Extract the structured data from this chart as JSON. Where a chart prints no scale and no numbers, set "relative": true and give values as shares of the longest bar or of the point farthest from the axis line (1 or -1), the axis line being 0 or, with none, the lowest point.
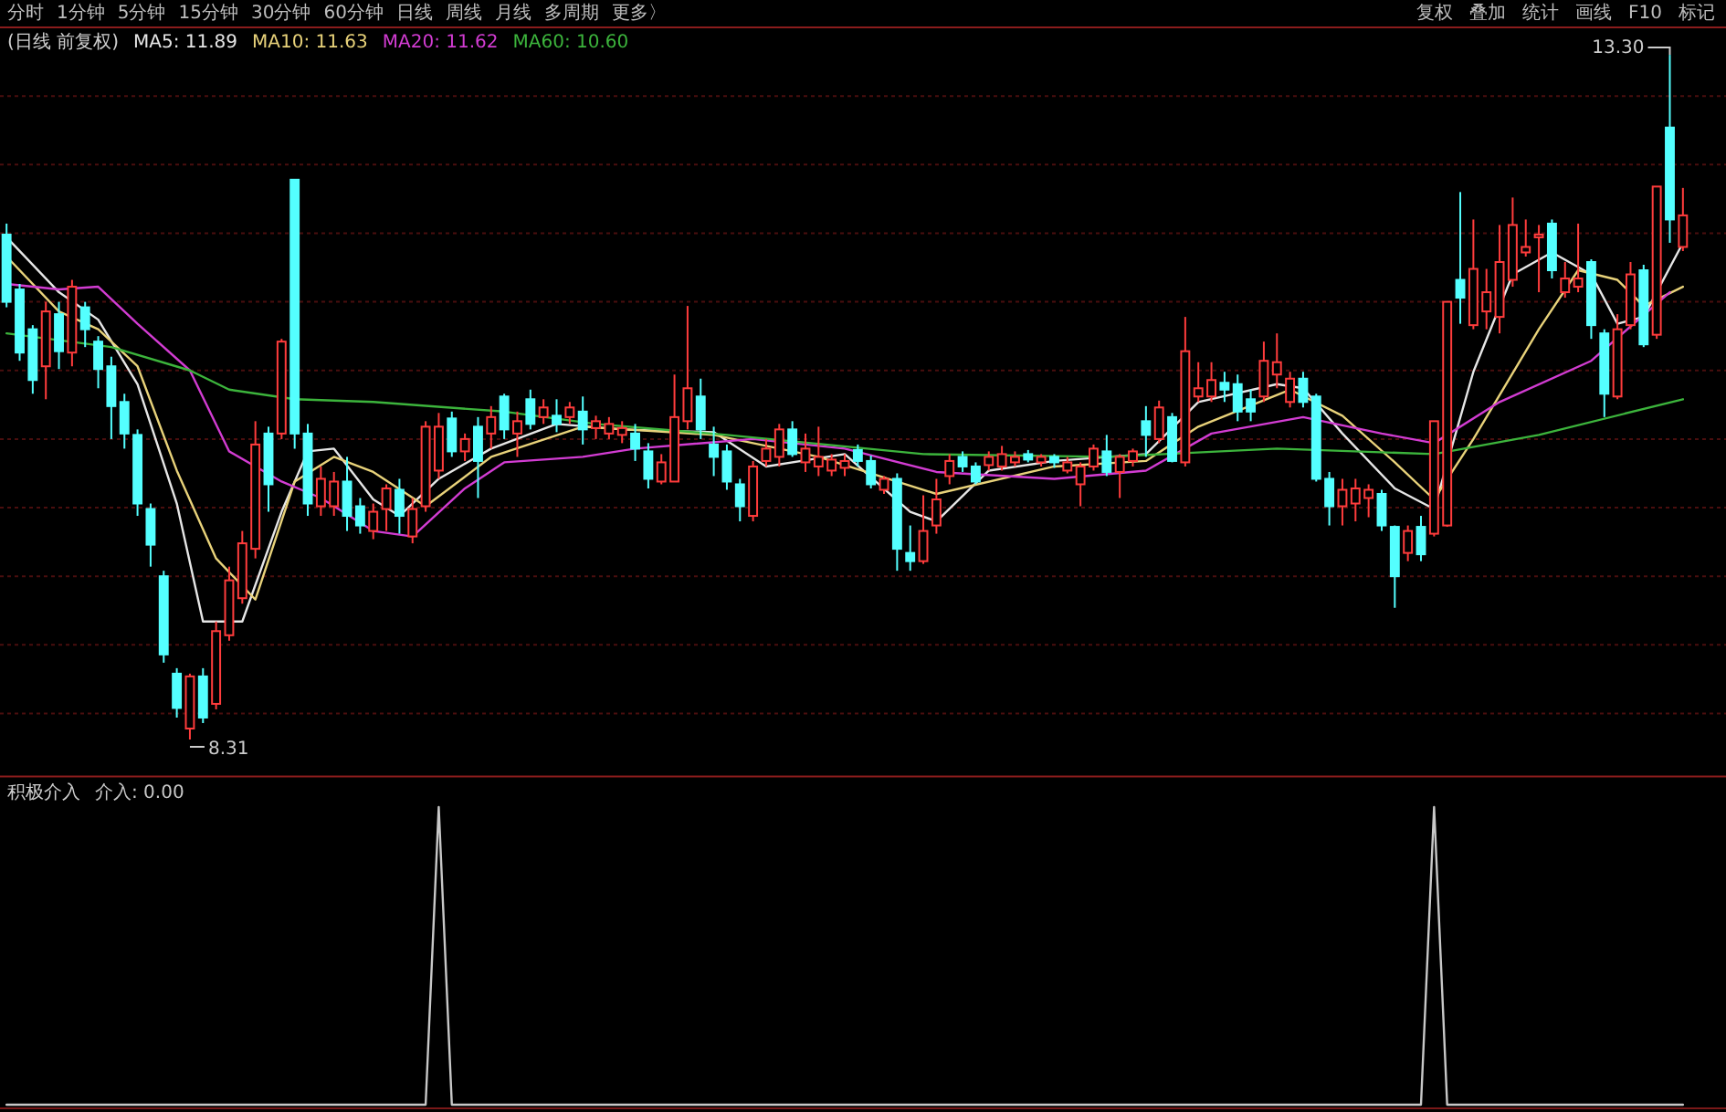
{
  "chart_data": [
    {
      "type": "candlestick",
      "title": "(日线 前复权)",
      "categories": [
        null,
        null,
        null,
        null,
        null,
        null,
        null,
        null,
        null,
        null,
        null,
        null,
        null,
        null,
        null,
        null,
        null,
        null,
        null,
        null,
        null,
        null,
        null,
        null,
        null,
        null,
        null,
        null,
        null,
        null,
        null,
        null,
        null,
        null,
        null,
        null,
        null,
        null,
        null,
        null,
        null,
        null,
        null,
        null,
        null,
        null,
        null,
        null,
        null,
        null,
        null,
        null,
        null,
        null,
        null,
        null,
        null,
        null,
        null,
        null,
        null,
        null,
        null,
        null,
        null,
        null,
        null,
        null,
        null,
        null,
        null,
        null,
        null,
        null,
        null,
        null,
        null,
        null,
        null,
        null,
        null,
        null,
        null,
        null,
        null,
        null,
        null,
        null,
        null,
        null,
        null,
        null,
        null,
        null,
        null,
        null,
        null,
        null,
        null,
        null,
        null,
        null,
        null,
        null,
        null,
        null,
        null,
        null,
        null,
        null,
        null,
        null,
        null,
        null,
        null,
        null,
        null,
        null,
        null,
        null,
        null,
        null,
        null,
        null,
        null,
        null,
        null,
        null,
        null
      ],
      "ohlc": [
        [
          11.99,
          12.07,
          11.46,
          11.5
        ],
        [
          11.59,
          11.63,
          11.07,
          11.13
        ],
        [
          11.3,
          11.33,
          10.83,
          10.93
        ],
        [
          11.03,
          11.5,
          10.79,
          11.43
        ],
        [
          11.41,
          11.5,
          11.01,
          11.14
        ],
        [
          11.13,
          11.66,
          11.03,
          11.61
        ],
        [
          11.46,
          11.5,
          11.17,
          11.3
        ],
        [
          11.21,
          11.25,
          10.87,
          11.01
        ],
        [
          11.03,
          11.1,
          10.5,
          10.74
        ],
        [
          10.77,
          10.83,
          10.43,
          10.54
        ],
        [
          10.53,
          10.57,
          9.94,
          10.03
        ],
        [
          9.99,
          10.03,
          9.57,
          9.73
        ],
        [
          9.5,
          9.54,
          8.87,
          8.93
        ],
        [
          8.79,
          8.83,
          8.47,
          8.54
        ],
        [
          8.39,
          8.79,
          8.31,
          8.77
        ],
        [
          8.77,
          8.83,
          8.43,
          8.47
        ],
        [
          8.57,
          9.17,
          8.53,
          9.1
        ],
        [
          9.07,
          9.57,
          9.03,
          9.47
        ],
        [
          9.34,
          9.83,
          9.3,
          9.74
        ],
        [
          9.7,
          10.63,
          9.63,
          10.46
        ],
        [
          10.54,
          10.59,
          9.97,
          10.17
        ],
        [
          10.54,
          11.23,
          10.5,
          11.21
        ],
        [
          12.39,
          12.39,
          10.43,
          10.54
        ],
        [
          10.54,
          10.61,
          9.94,
          10.03
        ],
        [
          10.01,
          10.3,
          9.94,
          10.21
        ],
        [
          10.01,
          10.26,
          9.94,
          10.19
        ],
        [
          10.19,
          10.37,
          9.83,
          9.94
        ],
        [
          10.01,
          10.07,
          9.81,
          9.87
        ],
        [
          9.83,
          10.03,
          9.77,
          9.97
        ],
        [
          9.99,
          10.17,
          9.83,
          10.14
        ],
        [
          10.13,
          10.21,
          9.81,
          9.94
        ],
        [
          9.79,
          10.07,
          9.74,
          9.99
        ],
        [
          10.01,
          10.63,
          9.97,
          10.59
        ],
        [
          10.27,
          10.69,
          10.21,
          10.59
        ],
        [
          10.65,
          10.7,
          10.37,
          10.41
        ],
        [
          10.41,
          10.54,
          10.34,
          10.5
        ],
        [
          10.59,
          10.66,
          10.07,
          10.34
        ],
        [
          10.54,
          10.74,
          10.43,
          10.66
        ],
        [
          10.81,
          10.83,
          10.5,
          10.57
        ],
        [
          10.54,
          10.7,
          10.37,
          10.63
        ],
        [
          10.79,
          10.86,
          10.57,
          10.61
        ],
        [
          10.66,
          10.79,
          10.61,
          10.73
        ],
        [
          10.67,
          10.79,
          10.55,
          10.61
        ],
        [
          10.66,
          10.77,
          10.61,
          10.73
        ],
        [
          10.7,
          10.81,
          10.46,
          10.57
        ],
        [
          10.58,
          10.67,
          10.5,
          10.63
        ],
        [
          10.54,
          10.66,
          10.5,
          10.61
        ],
        [
          10.53,
          10.63,
          10.47,
          10.58
        ],
        [
          10.54,
          10.61,
          10.34,
          10.43
        ],
        [
          10.41,
          10.47,
          10.14,
          10.21
        ],
        [
          10.19,
          10.39,
          10.17,
          10.33
        ],
        [
          10.19,
          10.97,
          10.19,
          10.66
        ],
        [
          10.63,
          11.47,
          10.57,
          10.87
        ],
        [
          10.81,
          10.94,
          10.5,
          10.57
        ],
        [
          10.46,
          10.59,
          10.23,
          10.37
        ],
        [
          10.41,
          10.46,
          10.13,
          10.19
        ],
        [
          10.17,
          10.21,
          9.9,
          10.01
        ],
        [
          9.94,
          10.34,
          9.9,
          10.3
        ],
        [
          10.34,
          10.5,
          10.3,
          10.43
        ],
        [
          10.37,
          10.61,
          10.3,
          10.57
        ],
        [
          10.57,
          10.63,
          10.37,
          10.39
        ],
        [
          10.33,
          10.54,
          10.26,
          10.43
        ],
        [
          10.3,
          10.59,
          10.23,
          10.37
        ],
        [
          10.27,
          10.39,
          10.23,
          10.35
        ],
        [
          10.29,
          10.39,
          10.23,
          10.34
        ],
        [
          10.42,
          10.46,
          10.3,
          10.34
        ],
        [
          10.34,
          10.38,
          10.14,
          10.17
        ],
        [
          10.13,
          10.23,
          10.1,
          10.21
        ],
        [
          10.21,
          10.25,
          9.54,
          9.7
        ],
        [
          9.67,
          9.87,
          9.54,
          9.61
        ],
        [
          9.61,
          10.09,
          9.59,
          9.83
        ],
        [
          9.87,
          10.21,
          9.81,
          10.06
        ],
        [
          10.23,
          10.39,
          10.17,
          10.34
        ],
        [
          10.37,
          10.41,
          10.26,
          10.3
        ],
        [
          10.3,
          10.33,
          10.17,
          10.19
        ],
        [
          10.31,
          10.41,
          10.27,
          10.37
        ],
        [
          10.3,
          10.45,
          10.27,
          10.39
        ],
        [
          10.33,
          10.41,
          10.3,
          10.37
        ],
        [
          10.39,
          10.42,
          10.33,
          10.35
        ],
        [
          10.33,
          10.39,
          10.3,
          10.37
        ],
        [
          10.37,
          10.39,
          10.29,
          10.33
        ],
        [
          10.27,
          10.37,
          10.25,
          10.33
        ],
        [
          10.17,
          10.33,
          10.01,
          10.3
        ],
        [
          10.3,
          10.46,
          10.27,
          10.43
        ],
        [
          10.41,
          10.53,
          10.23,
          10.26
        ],
        [
          10.26,
          10.39,
          10.07,
          10.37
        ],
        [
          10.34,
          10.43,
          10.3,
          10.41
        ],
        [
          10.63,
          10.74,
          10.37,
          10.53
        ],
        [
          10.5,
          10.78,
          10.47,
          10.73
        ],
        [
          10.66,
          10.69,
          10.33,
          10.34
        ],
        [
          10.33,
          11.39,
          10.3,
          11.14
        ],
        [
          10.81,
          11.06,
          10.77,
          10.87
        ],
        [
          10.81,
          11.06,
          10.77,
          10.93
        ],
        [
          10.91,
          10.99,
          10.77,
          10.86
        ],
        [
          10.9,
          10.97,
          10.63,
          10.7
        ],
        [
          10.79,
          10.86,
          10.63,
          10.7
        ],
        [
          10.81,
          11.21,
          10.77,
          11.07
        ],
        [
          10.97,
          11.27,
          10.87,
          11.06
        ],
        [
          10.77,
          10.99,
          10.73,
          10.94
        ],
        [
          10.94,
          10.99,
          10.73,
          10.77
        ],
        [
          10.81,
          10.83,
          10.19,
          10.21
        ],
        [
          10.21,
          10.26,
          9.87,
          10.01
        ],
        [
          10.01,
          10.21,
          9.87,
          10.13
        ],
        [
          10.03,
          10.21,
          9.9,
          10.14
        ],
        [
          10.07,
          10.17,
          9.93,
          10.13
        ],
        [
          10.1,
          10.13,
          9.83,
          9.87
        ],
        [
          9.86,
          9.87,
          9.27,
          9.5
        ],
        [
          9.67,
          9.87,
          9.61,
          9.83
        ],
        [
          9.86,
          9.94,
          9.61,
          9.66
        ],
        [
          9.81,
          10.63,
          9.79,
          10.63
        ],
        [
          9.87,
          11.5,
          9.86,
          11.5
        ],
        [
          11.66,
          12.3,
          11.34,
          11.53
        ],
        [
          11.33,
          12.1,
          11.3,
          11.74
        ],
        [
          11.43,
          11.74,
          11.3,
          11.57
        ],
        [
          11.39,
          12.06,
          11.27,
          11.79
        ],
        [
          11.66,
          12.26,
          11.61,
          12.06
        ],
        [
          11.86,
          12.1,
          11.83,
          11.9
        ],
        [
          11.97,
          12.06,
          11.57,
          11.99
        ],
        [
          12.07,
          12.1,
          11.67,
          11.73
        ],
        [
          11.57,
          11.79,
          11.53,
          11.67
        ],
        [
          11.61,
          12.07,
          11.57,
          11.67
        ],
        [
          11.79,
          11.81,
          11.23,
          11.33
        ],
        [
          11.27,
          11.3,
          10.66,
          10.83
        ],
        [
          10.81,
          11.41,
          10.79,
          11.3
        ],
        [
          11.33,
          11.79,
          11.3,
          11.7
        ],
        [
          11.73,
          11.77,
          11.17,
          11.19
        ],
        [
          11.26,
          12.34,
          11.23,
          12.34
        ],
        [
          12.77,
          13.3,
          11.93,
          12.1
        ],
        [
          11.9,
          12.33,
          11.87,
          12.13
        ]
      ],
      "series": [
        {
          "name": "MA5: 11.89",
          "type": "line",
          "color": "#e6e6e6",
          "values": [
            11.97,
            null,
            null,
            null,
            11.57,
            null,
            null,
            11.37,
            null,
            null,
            10.9,
            null,
            null,
            10.03,
            null,
            9.17,
            null,
            null,
            9.17,
            null,
            null,
            9.97,
            null,
            10.41,
            null,
            10.43,
            null,
            null,
            10.06,
            null,
            9.94,
            null,
            null,
            10.21,
            null,
            null,
            null,
            10.43,
            null,
            null,
            null,
            null,
            10.61,
            null,
            null,
            null,
            null,
            10.57,
            null,
            null,
            null,
            null,
            null,
            null,
            10.55,
            null,
            null,
            null,
            10.3,
            null,
            null,
            null,
            null,
            null,
            10.39,
            null,
            null,
            null,
            null,
            9.97,
            null,
            9.9,
            null,
            null,
            null,
            10.27,
            null,
            null,
            null,
            null,
            10.34,
            null,
            null,
            null,
            null,
            null,
            null,
            10.39,
            null,
            null,
            null,
            10.77,
            null,
            null,
            null,
            null,
            null,
            10.9,
            null,
            10.87,
            null,
            null,
            10.54,
            null,
            null,
            null,
            10.14,
            null,
            null,
            9.99,
            null,
            null,
            10.99,
            null,
            null,
            11.7,
            null,
            null,
            11.86,
            null,
            null,
            11.7,
            null,
            11.34,
            null,
            11.39,
            null,
            null,
            11.93
          ]
        },
        {
          "name": "MA10: 11.63",
          "type": "line",
          "color": "#e8d27a",
          "values": [
            11.83,
            null,
            null,
            null,
            11.43,
            null,
            null,
            11.3,
            null,
            null,
            11.03,
            null,
            null,
            10.27,
            null,
            null,
            9.63,
            null,
            null,
            9.33,
            null,
            null,
            10.19,
            null,
            null,
            10.37,
            null,
            null,
            10.26,
            null,
            null,
            null,
            10.01,
            null,
            null,
            null,
            null,
            10.37,
            null,
            null,
            null,
            null,
            null,
            null,
            10.59,
            null,
            null,
            null,
            null,
            null,
            null,
            null,
            null,
            null,
            10.53,
            null,
            null,
            null,
            null,
            null,
            null,
            null,
            10.37,
            null,
            null,
            null,
            null,
            null,
            null,
            null,
            null,
            10.1,
            null,
            null,
            null,
            null,
            null,
            null,
            null,
            null,
            10.3,
            null,
            null,
            null,
            null,
            null,
            null,
            10.34,
            null,
            null,
            null,
            10.59,
            null,
            null,
            null,
            null,
            null,
            null,
            10.86,
            null,
            null,
            null,
            10.67,
            null,
            null,
            null,
            10.33,
            null,
            null,
            10.06,
            null,
            null,
            10.5,
            null,
            null,
            null,
            null,
            11.3,
            null,
            null,
            11.73,
            null,
            null,
            11.66,
            null,
            11.47,
            null,
            null,
            11.61
          ]
        },
        {
          "name": "MA20: 11.62",
          "type": "line",
          "color": "#d23cd2",
          "values": [
            11.63,
            null,
            null,
            null,
            11.59,
            null,
            null,
            11.61,
            null,
            null,
            11.34,
            null,
            null,
            null,
            11.0,
            null,
            null,
            10.41,
            null,
            null,
            null,
            10.19,
            null,
            null,
            10.07,
            null,
            null,
            null,
            9.83,
            null,
            null,
            9.79,
            null,
            null,
            null,
            10.14,
            null,
            null,
            10.33,
            null,
            null,
            null,
            null,
            null,
            10.37,
            null,
            null,
            null,
            10.43,
            null,
            null,
            null,
            null,
            null,
            null,
            null,
            null,
            10.5,
            null,
            null,
            null,
            null,
            null,
            null,
            10.43,
            null,
            null,
            null,
            null,
            null,
            null,
            10.26,
            null,
            null,
            null,
            null,
            null,
            null,
            null,
            null,
            10.21,
            null,
            null,
            null,
            null,
            null,
            null,
            10.27,
            null,
            null,
            null,
            null,
            10.54,
            null,
            null,
            null,
            null,
            null,
            null,
            10.66,
            null,
            null,
            null,
            null,
            null,
            10.54,
            null,
            null,
            null,
            10.47,
            null,
            null,
            null,
            null,
            10.77,
            null,
            null,
            null,
            null,
            null,
            null,
            11.07,
            null,
            null,
            null,
            null,
            null,
            11.57,
            null
          ]
        },
        {
          "name": "MA60: 10.60",
          "type": "line",
          "color": "#3cb43c",
          "values": [
            11.27,
            null,
            null,
            null,
            null,
            null,
            null,
            null,
            11.17,
            null,
            null,
            null,
            null,
            null,
            11.0,
            null,
            null,
            10.86,
            null,
            null,
            null,
            null,
            10.79,
            null,
            null,
            null,
            null,
            null,
            10.77,
            null,
            null,
            null,
            null,
            null,
            null,
            null,
            null,
            null,
            10.7,
            null,
            null,
            null,
            null,
            null,
            null,
            10.61,
            null,
            null,
            null,
            null,
            null,
            null,
            null,
            null,
            null,
            10.53,
            null,
            null,
            null,
            null,
            null,
            null,
            null,
            null,
            null,
            null,
            null,
            null,
            null,
            null,
            10.39,
            null,
            null,
            null,
            null,
            null,
            null,
            null,
            null,
            null,
            null,
            null,
            null,
            null,
            10.37,
            null,
            null,
            null,
            null,
            null,
            null,
            null,
            null,
            null,
            null,
            null,
            null,
            10.43,
            null,
            null,
            null,
            null,
            null,
            null,
            null,
            null,
            null,
            null,
            null,
            10.39,
            null,
            null,
            null,
            null,
            null,
            null,
            null,
            10.53,
            null,
            null,
            null,
            null,
            null,
            null,
            null,
            null,
            null,
            null,
            10.79
          ]
        }
      ],
      "ylim": [
        8.04,
        13.5
      ],
      "yticks": [
        {
          "value": 8.5,
          "label": null
        },
        {
          "value": 9,
          "label": null
        },
        {
          "value": 9.5,
          "label": null
        },
        {
          "value": 10,
          "label": null
        },
        {
          "value": 10.5,
          "label": null
        },
        {
          "value": 11,
          "label": null
        },
        {
          "value": 11.5,
          "label": null
        },
        {
          "value": 12,
          "label": null
        },
        {
          "value": 12.5,
          "label": null
        },
        {
          "value": 13,
          "label": null
        }
      ],
      "grid": "y",
      "legend": "top left",
      "tick_labels": false,
      "annotations": [
        "13.30",
        "8.31",
        "分时",
        "1分钟",
        "5分钟",
        "15分钟",
        "30分钟",
        "60分钟",
        "日线",
        "周线",
        "月线",
        "多周期",
        "更多〉",
        "复权",
        "叠加",
        "统计",
        "画线",
        "F10",
        "标记"
      ]
    },
    {
      "type": "line",
      "title": "积极介入",
      "relative": true,
      "legend": "top left",
      "tick_labels": false,
      "categories": [
        null,
        null,
        null,
        null,
        null,
        null,
        null,
        null,
        null,
        null,
        null,
        null,
        null,
        null,
        null,
        null,
        null,
        null,
        null,
        null,
        null,
        null,
        null,
        null,
        null,
        null,
        null,
        null,
        null,
        null,
        null,
        null,
        null,
        null,
        null,
        null,
        null,
        null,
        null,
        null,
        null,
        null,
        null,
        null,
        null,
        null,
        null,
        null,
        null,
        null,
        null,
        null,
        null,
        null,
        null,
        null,
        null,
        null,
        null,
        null,
        null,
        null,
        null,
        null,
        null,
        null,
        null,
        null,
        null,
        null,
        null,
        null,
        null,
        null,
        null,
        null,
        null,
        null,
        null,
        null,
        null,
        null,
        null,
        null,
        null,
        null,
        null,
        null,
        null,
        null,
        null,
        null,
        null,
        null,
        null,
        null,
        null,
        null,
        null,
        null,
        null,
        null,
        null,
        null,
        null,
        null,
        null,
        null,
        null,
        null,
        null,
        null,
        null,
        null,
        null,
        null,
        null,
        null,
        null,
        null,
        null,
        null,
        null,
        null,
        null,
        null,
        null,
        null,
        null
      ],
      "series": [
        {
          "name": "介入: 0.00",
          "color": "#c8c8c8",
          "values": [
            0,
            0,
            0,
            0,
            0,
            0,
            0,
            0,
            0,
            0,
            0,
            0,
            0,
            0,
            0,
            0,
            0,
            0,
            0,
            0,
            0,
            0,
            0,
            0,
            0,
            0,
            0,
            0,
            0,
            0,
            0,
            0,
            0,
            1,
            0,
            0,
            0,
            0,
            0,
            0,
            0,
            0,
            0,
            0,
            0,
            0,
            0,
            0,
            0,
            0,
            0,
            0,
            0,
            0,
            0,
            0,
            0,
            0,
            0,
            0,
            0,
            0,
            0,
            0,
            0,
            0,
            0,
            0,
            0,
            0,
            0,
            0,
            0,
            0,
            0,
            0,
            0,
            0,
            0,
            0,
            0,
            0,
            0,
            0,
            0,
            0,
            0,
            0,
            0,
            0,
            0,
            0,
            0,
            0,
            0,
            0,
            0,
            0,
            0,
            0,
            0,
            0,
            0,
            0,
            0,
            0,
            0,
            0,
            0,
            1,
            0,
            0,
            0,
            0,
            0,
            0,
            0,
            0,
            0,
            0,
            0,
            0,
            0,
            0,
            0,
            0,
            0,
            0,
            0
          ]
        }
      ]
    }
  ]
}
